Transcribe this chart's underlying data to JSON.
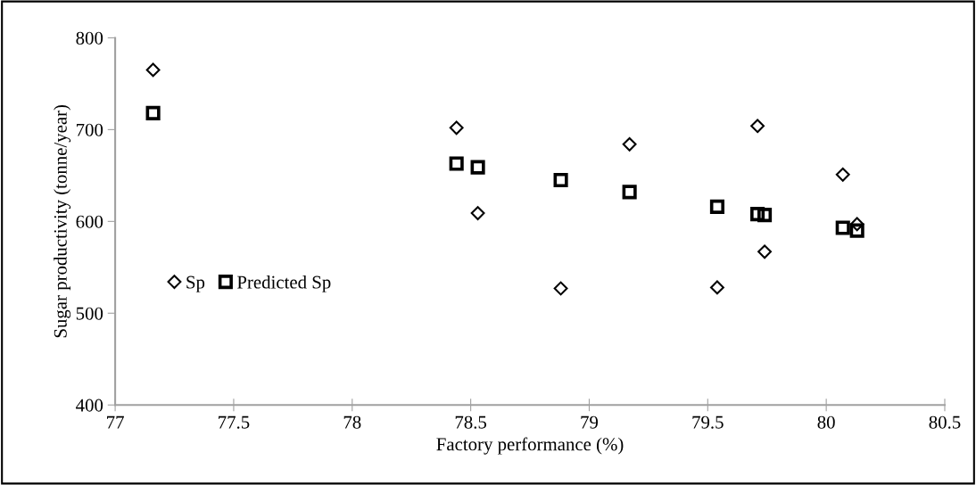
{
  "chart_data": {
    "type": "scatter",
    "xlabel": "Factory performance (%)",
    "ylabel": "Sugar productivity (tonne/year)",
    "x": [
      77.16,
      78.44,
      78.53,
      78.88,
      79.17,
      79.54,
      79.71,
      79.74,
      80.07,
      80.13
    ],
    "series": [
      {
        "name": "Sp",
        "color": "#000000",
        "marker": "diamond",
        "values": [
          765,
          702,
          609,
          527,
          684,
          528,
          704,
          567,
          651,
          597
        ]
      },
      {
        "name": "Predicted Sp",
        "color": "#000000",
        "marker": "square",
        "values": [
          718,
          663,
          659,
          645,
          632,
          616,
          608,
          607,
          593,
          590
        ]
      }
    ],
    "xlim": [
      77,
      80.5
    ],
    "xticks": [
      77,
      77.5,
      78,
      78.5,
      79,
      79.5,
      80,
      80.5
    ],
    "ylim": [
      400,
      800
    ],
    "yticks": [
      400,
      500,
      600,
      700,
      800
    ],
    "grid": false,
    "legend": "left"
  }
}
